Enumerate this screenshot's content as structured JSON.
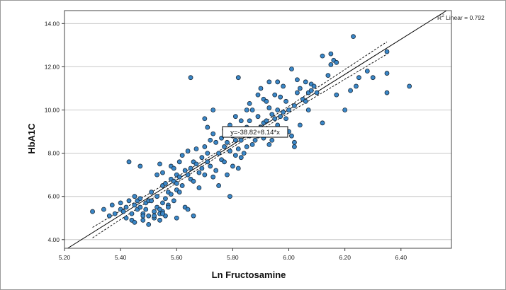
{
  "chart_data": {
    "type": "scatter",
    "xlabel": "Ln Fructosamine",
    "ylabel": "HbA1C",
    "xlim": [
      5.2,
      6.58
    ],
    "ylim": [
      3.6,
      14.6
    ],
    "xticks": [
      "5.20",
      "5.40",
      "5.60",
      "5.80",
      "6.00",
      "6.20",
      "6.40"
    ],
    "yticks": [
      "4.00",
      "6.00",
      "8.00",
      "10.00",
      "12.00",
      "14.00"
    ],
    "grid": "horizontal",
    "fit": {
      "r2_label": "R",
      "r2_sup": "2",
      "r2_text": " Linear = 0.792",
      "equation": "y=-38.82+8.14*x",
      "intercept": -38.82,
      "slope": 8.14
    },
    "colors": {
      "marker": "#3a87c8",
      "marker_edge": "#1a2a3a",
      "line": "#000000",
      "grid": "#c8c8c8"
    },
    "points": [
      [
        5.3,
        5.3
      ],
      [
        5.34,
        5.4
      ],
      [
        5.36,
        5.1
      ],
      [
        5.37,
        5.6
      ],
      [
        5.38,
        5.2
      ],
      [
        5.4,
        5.7
      ],
      [
        5.4,
        5.4
      ],
      [
        5.41,
        5.3
      ],
      [
        5.42,
        5.5
      ],
      [
        5.42,
        5.0
      ],
      [
        5.43,
        7.6
      ],
      [
        5.43,
        5.8
      ],
      [
        5.44,
        5.2
      ],
      [
        5.44,
        4.9
      ],
      [
        5.45,
        6.0
      ],
      [
        5.45,
        5.6
      ],
      [
        5.46,
        5.8
      ],
      [
        5.46,
        5.4
      ],
      [
        5.47,
        7.4
      ],
      [
        5.47,
        5.9
      ],
      [
        5.47,
        5.5
      ],
      [
        5.48,
        5.2
      ],
      [
        5.48,
        4.9
      ],
      [
        5.49,
        5.7
      ],
      [
        5.49,
        5.4
      ],
      [
        5.5,
        5.8
      ],
      [
        5.5,
        5.1
      ],
      [
        5.5,
        4.7
      ],
      [
        5.51,
        6.2
      ],
      [
        5.51,
        5.8
      ],
      [
        5.52,
        5.3
      ],
      [
        5.52,
        5.0
      ],
      [
        5.53,
        7.0
      ],
      [
        5.53,
        6.0
      ],
      [
        5.53,
        5.5
      ],
      [
        5.54,
        7.5
      ],
      [
        5.54,
        5.2
      ],
      [
        5.54,
        4.9
      ],
      [
        5.55,
        7.1
      ],
      [
        5.55,
        6.5
      ],
      [
        5.55,
        5.7
      ],
      [
        5.55,
        5.3
      ],
      [
        5.56,
        6.6
      ],
      [
        5.56,
        5.9
      ],
      [
        5.56,
        5.1
      ],
      [
        5.57,
        6.2
      ],
      [
        5.57,
        5.6
      ],
      [
        5.58,
        7.4
      ],
      [
        5.58,
        6.8
      ],
      [
        5.58,
        6.1
      ],
      [
        5.59,
        7.3
      ],
      [
        5.59,
        6.7
      ],
      [
        5.59,
        5.8
      ],
      [
        5.6,
        7.0
      ],
      [
        5.6,
        6.3
      ],
      [
        5.6,
        5.0
      ],
      [
        5.61,
        7.6
      ],
      [
        5.61,
        6.9
      ],
      [
        5.61,
        6.2
      ],
      [
        5.62,
        7.9
      ],
      [
        5.62,
        6.5
      ],
      [
        5.63,
        7.2
      ],
      [
        5.63,
        5.5
      ],
      [
        5.64,
        8.1
      ],
      [
        5.64,
        7.0
      ],
      [
        5.64,
        5.4
      ],
      [
        5.65,
        11.5
      ],
      [
        5.65,
        7.3
      ],
      [
        5.65,
        6.8
      ],
      [
        5.66,
        7.6
      ],
      [
        5.66,
        6.7
      ],
      [
        5.66,
        5.1
      ],
      [
        5.67,
        8.2
      ],
      [
        5.67,
        7.5
      ],
      [
        5.68,
        7.1
      ],
      [
        5.68,
        6.4
      ],
      [
        5.69,
        7.8
      ],
      [
        5.69,
        7.3
      ],
      [
        5.7,
        9.6
      ],
      [
        5.7,
        8.3
      ],
      [
        5.7,
        7.0
      ],
      [
        5.71,
        9.2
      ],
      [
        5.71,
        8.0
      ],
      [
        5.71,
        7.6
      ],
      [
        5.72,
        8.6
      ],
      [
        5.72,
        7.4
      ],
      [
        5.73,
        10.0
      ],
      [
        5.73,
        8.9
      ],
      [
        5.73,
        6.9
      ],
      [
        5.74,
        8.5
      ],
      [
        5.74,
        7.2
      ],
      [
        5.75,
        8.0
      ],
      [
        5.75,
        6.5
      ],
      [
        5.76,
        8.7
      ],
      [
        5.76,
        7.7
      ],
      [
        5.77,
        9.1
      ],
      [
        5.77,
        8.3
      ],
      [
        5.77,
        7.6
      ],
      [
        5.78,
        8.5
      ],
      [
        5.78,
        7.0
      ],
      [
        5.79,
        9.3
      ],
      [
        5.79,
        8.1
      ],
      [
        5.79,
        6.0
      ],
      [
        5.8,
        8.8
      ],
      [
        5.8,
        7.4
      ],
      [
        5.81,
        9.7
      ],
      [
        5.81,
        8.6
      ],
      [
        5.81,
        7.9
      ],
      [
        5.82,
        11.5
      ],
      [
        5.82,
        9.0
      ],
      [
        5.82,
        8.2
      ],
      [
        5.82,
        7.3
      ],
      [
        5.83,
        9.5
      ],
      [
        5.83,
        8.6
      ],
      [
        5.83,
        7.8
      ],
      [
        5.84,
        8.9
      ],
      [
        5.84,
        8.0
      ],
      [
        5.85,
        10.0
      ],
      [
        5.85,
        9.2
      ],
      [
        5.85,
        8.3
      ],
      [
        5.86,
        10.3
      ],
      [
        5.86,
        9.5
      ],
      [
        5.86,
        8.8
      ],
      [
        5.87,
        10.0
      ],
      [
        5.87,
        8.4
      ],
      [
        5.88,
        9.1
      ],
      [
        5.88,
        8.6
      ],
      [
        5.89,
        10.7
      ],
      [
        5.89,
        9.7
      ],
      [
        5.89,
        8.8
      ],
      [
        5.9,
        11.0
      ],
      [
        5.9,
        9.2
      ],
      [
        5.91,
        10.5
      ],
      [
        5.91,
        9.4
      ],
      [
        5.91,
        8.7
      ],
      [
        5.92,
        10.4
      ],
      [
        5.92,
        9.5
      ],
      [
        5.93,
        11.3
      ],
      [
        5.93,
        10.1
      ],
      [
        5.93,
        9.0
      ],
      [
        5.93,
        8.4
      ],
      [
        5.94,
        9.8
      ],
      [
        5.94,
        8.6
      ],
      [
        5.95,
        10.7
      ],
      [
        5.95,
        9.6
      ],
      [
        5.96,
        11.3
      ],
      [
        5.96,
        10.0
      ],
      [
        5.96,
        9.3
      ],
      [
        5.97,
        10.6
      ],
      [
        5.97,
        9.7
      ],
      [
        5.98,
        11.1
      ],
      [
        5.98,
        9.9
      ],
      [
        5.99,
        10.4
      ],
      [
        5.99,
        9.6
      ],
      [
        6.0,
        10.0
      ],
      [
        6.0,
        9.0
      ],
      [
        6.01,
        11.9
      ],
      [
        6.01,
        8.8
      ],
      [
        6.02,
        10.2
      ],
      [
        6.02,
        8.5
      ],
      [
        6.02,
        8.3
      ],
      [
        6.03,
        11.4
      ],
      [
        6.03,
        10.8
      ],
      [
        6.04,
        11.0
      ],
      [
        6.04,
        9.3
      ],
      [
        6.05,
        10.5
      ],
      [
        6.06,
        11.3
      ],
      [
        6.06,
        10.4
      ],
      [
        6.07,
        10.8
      ],
      [
        6.07,
        10.0
      ],
      [
        6.08,
        11.2
      ],
      [
        6.08,
        10.9
      ],
      [
        6.09,
        11.1
      ],
      [
        6.1,
        10.8
      ],
      [
        6.12,
        12.5
      ],
      [
        6.12,
        9.4
      ],
      [
        6.14,
        11.6
      ],
      [
        6.15,
        12.1
      ],
      [
        6.15,
        12.6
      ],
      [
        6.16,
        12.3
      ],
      [
        6.17,
        12.2
      ],
      [
        6.17,
        10.7
      ],
      [
        6.2,
        10.0
      ],
      [
        6.22,
        10.9
      ],
      [
        6.23,
        13.4
      ],
      [
        6.24,
        11.1
      ],
      [
        6.25,
        11.5
      ],
      [
        6.28,
        11.8
      ],
      [
        6.3,
        11.5
      ],
      [
        6.35,
        12.7
      ],
      [
        6.35,
        11.7
      ],
      [
        6.35,
        10.8
      ],
      [
        6.43,
        11.1
      ],
      [
        5.55,
        5.2
      ],
      [
        5.54,
        5.4
      ],
      [
        5.52,
        5.1
      ],
      [
        5.45,
        4.8
      ],
      [
        5.48,
        5.1
      ],
      [
        5.57,
        5.5
      ],
      [
        5.6,
        6.6
      ]
    ]
  }
}
